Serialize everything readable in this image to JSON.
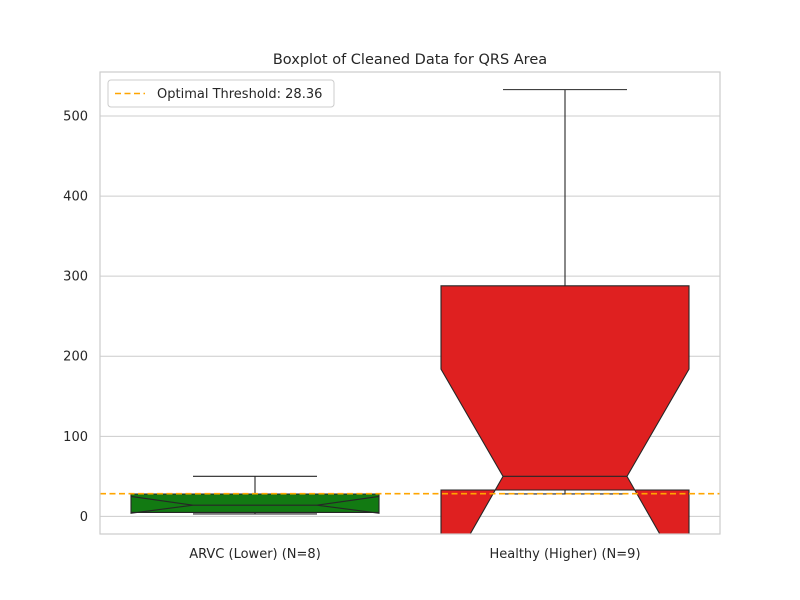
{
  "chart_data": {
    "type": "boxplot",
    "title": "Boxplot of Cleaned Data for QRS Area",
    "xlabel": "",
    "ylabel": "",
    "categories": [
      "ARVC (Lower) (N=8)",
      "Healthy (Higher) (N=9)"
    ],
    "ylim": [
      -22,
      555
    ],
    "yticks": [
      0,
      100,
      200,
      300,
      400,
      500
    ],
    "grid": "horizontal",
    "notched": true,
    "boxes": [
      {
        "label": "ARVC (Lower) (N=8)",
        "color": "#127a12",
        "whisker_low": 3,
        "q1": 5,
        "notch_low": 25,
        "median": 14,
        "notch_high": 4,
        "q3": 28,
        "whisker_high": 50
      },
      {
        "label": "Healthy (Higher) (N=9)",
        "color": "#df2020",
        "whisker_low": 28,
        "q1": 33,
        "notch_low": -86,
        "median": 50,
        "notch_high": 184,
        "q3": 288,
        "whisker_high": 533
      }
    ],
    "threshold": {
      "value": 28.36,
      "label": "Optimal Threshold: 28.36",
      "color": "#ffa500",
      "style": "dashed"
    },
    "legend": {
      "placement": "top-left"
    }
  }
}
